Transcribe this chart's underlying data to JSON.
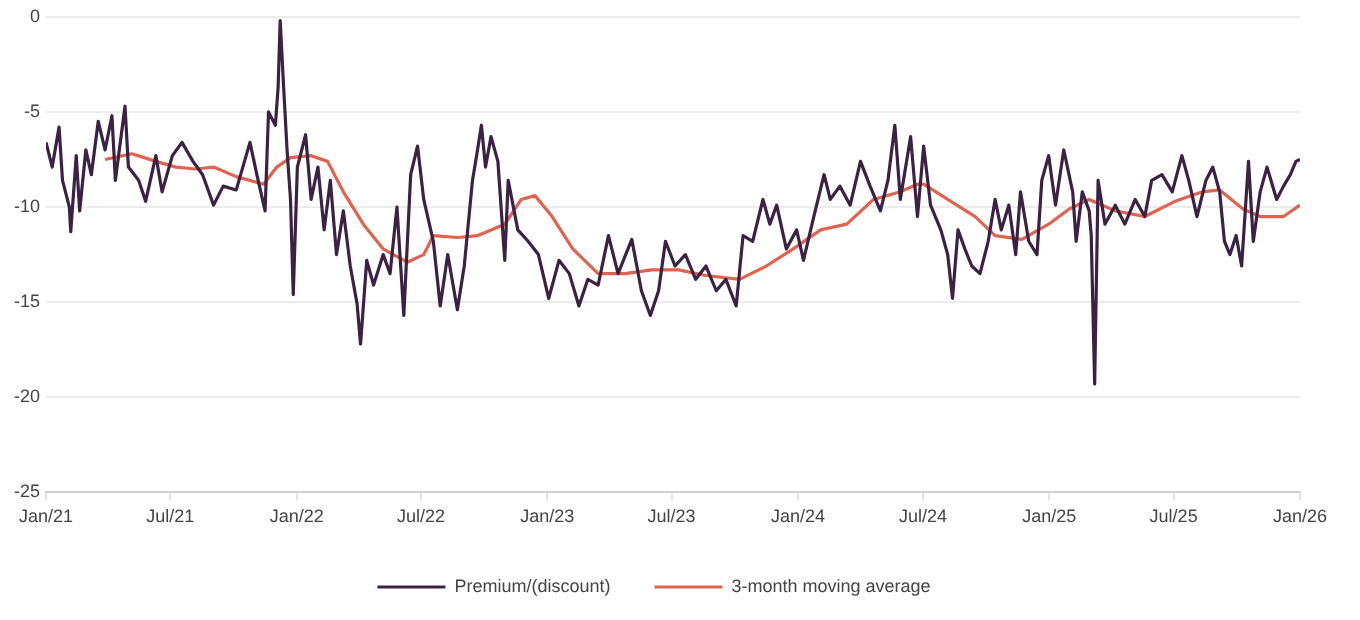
{
  "chart_data": {
    "type": "line",
    "xlim": [
      "2021-01-01",
      "2026-01-01"
    ],
    "xticks": [
      {
        "value": "2021-01-01",
        "label": "Jan/21"
      },
      {
        "value": "2021-07-01",
        "label": "Jul/21"
      },
      {
        "value": "2022-01-01",
        "label": "Jan/22"
      },
      {
        "value": "2022-07-01",
        "label": "Jul/22"
      },
      {
        "value": "2023-01-01",
        "label": "Jan/23"
      },
      {
        "value": "2023-07-01",
        "label": "Jul/23"
      },
      {
        "value": "2024-01-01",
        "label": "Jan/24"
      },
      {
        "value": "2024-07-01",
        "label": "Jul/24"
      },
      {
        "value": "2025-01-01",
        "label": "Jan/25"
      },
      {
        "value": "2025-07-01",
        "label": "Jul/25"
      },
      {
        "value": "2026-01-01",
        "label": "Jan/26"
      }
    ],
    "ylim": [
      -25,
      0
    ],
    "yticks": [
      -25,
      -20,
      -15,
      -10,
      -5,
      0
    ],
    "grid": "y",
    "legend": "bottom",
    "marker": "none",
    "line_style": "solid",
    "series": [
      {
        "name": "Premium/(discount)",
        "color": "#3b2245",
        "x": [
          "2021-01-01",
          "2021-01-10",
          "2021-01-20",
          "2021-01-25",
          "2021-02-04",
          "2021-02-06",
          "2021-02-14",
          "2021-02-19",
          "2021-02-28",
          "2021-03-08",
          "2021-03-18",
          "2021-03-28",
          "2021-04-07",
          "2021-04-12",
          "2021-04-26",
          "2021-05-01",
          "2021-05-16",
          "2021-05-26",
          "2021-06-10",
          "2021-06-19",
          "2021-07-04",
          "2021-07-18",
          "2021-08-03",
          "2021-08-17",
          "2021-09-02",
          "2021-09-16",
          "2021-10-05",
          "2021-10-25",
          "2021-11-04",
          "2021-11-16",
          "2021-11-21",
          "2021-12-01",
          "2021-12-05",
          "2021-12-08",
          "2021-12-13",
          "2021-12-18",
          "2021-12-23",
          "2021-12-27",
          "2022-01-02",
          "2022-01-14",
          "2022-01-22",
          "2022-02-01",
          "2022-02-10",
          "2022-02-19",
          "2022-02-28",
          "2022-03-10",
          "2022-03-20",
          "2022-03-30",
          "2022-04-04",
          "2022-04-13",
          "2022-04-23",
          "2022-05-07",
          "2022-05-17",
          "2022-05-27",
          "2022-06-06",
          "2022-06-16",
          "2022-06-26",
          "2022-07-05",
          "2022-07-19",
          "2022-07-29",
          "2022-08-09",
          "2022-08-23",
          "2022-09-02",
          "2022-09-14",
          "2022-09-20",
          "2022-09-27",
          "2022-10-03",
          "2022-10-11",
          "2022-10-21",
          "2022-10-31",
          "2022-11-05",
          "2022-11-19",
          "2022-12-04",
          "2022-12-19",
          "2023-01-03",
          "2023-01-18",
          "2023-02-02",
          "2023-02-16",
          "2023-03-01",
          "2023-03-16",
          "2023-03-31",
          "2023-04-14",
          "2023-05-04",
          "2023-05-18",
          "2023-05-31",
          "2023-06-12",
          "2023-06-22",
          "2023-07-06",
          "2023-07-21",
          "2023-08-05",
          "2023-08-20",
          "2023-09-04",
          "2023-09-18",
          "2023-10-03",
          "2023-10-13",
          "2023-10-27",
          "2023-11-11",
          "2023-11-21",
          "2023-12-01",
          "2023-12-15",
          "2023-12-30",
          "2024-01-09",
          "2024-01-24",
          "2024-02-08",
          "2024-02-17",
          "2024-03-02",
          "2024-03-17",
          "2024-04-01",
          "2024-04-15",
          "2024-04-30",
          "2024-05-11",
          "2024-05-21",
          "2024-05-29",
          "2024-06-13",
          "2024-06-23",
          "2024-07-02",
          "2024-07-12",
          "2024-07-27",
          "2024-08-06",
          "2024-08-13",
          "2024-08-21",
          "2024-08-31",
          "2024-09-10",
          "2024-09-22",
          "2024-10-04",
          "2024-10-14",
          "2024-10-23",
          "2024-11-03",
          "2024-11-13",
          "2024-11-20",
          "2024-12-02",
          "2024-12-14",
          "2024-12-21",
          "2024-12-31",
          "2025-01-10",
          "2025-01-22",
          "2025-02-04",
          "2025-02-09",
          "2025-02-18",
          "2025-02-28",
          "2025-03-03",
          "2025-03-08",
          "2025-03-13",
          "2025-03-23",
          "2025-04-07",
          "2025-04-21",
          "2025-05-06",
          "2025-05-20",
          "2025-05-30",
          "2025-06-14",
          "2025-06-29",
          "2025-07-13",
          "2025-07-23",
          "2025-08-04",
          "2025-08-17",
          "2025-08-27",
          "2025-09-06",
          "2025-09-13",
          "2025-09-21",
          "2025-09-30",
          "2025-10-08",
          "2025-10-18",
          "2025-10-25",
          "2025-11-04",
          "2025-11-14",
          "2025-11-28",
          "2025-12-08",
          "2025-12-18",
          "2025-12-26",
          "2026-01-01"
        ],
        "values": [
          -6.6,
          -7.9,
          -5.8,
          -8.6,
          -10,
          -11.3,
          -7.3,
          -10.2,
          -7,
          -8.3,
          -5.5,
          -7,
          -5.2,
          -8.6,
          -4.7,
          -7.9,
          -8.6,
          -9.7,
          -7.3,
          -9.2,
          -7.3,
          -6.6,
          -7.6,
          -8.3,
          -9.9,
          -8.9,
          -9.1,
          -6.6,
          -8.3,
          -10.2,
          -5,
          -5.7,
          -3.7,
          -0.2,
          -3.7,
          -7,
          -9.6,
          -14.6,
          -7.9,
          -6.2,
          -9.6,
          -7.9,
          -11.2,
          -8.6,
          -12.5,
          -10.2,
          -13.1,
          -15.1,
          -17.2,
          -12.8,
          -14.1,
          -12.5,
          -13.5,
          -10,
          -15.7,
          -8.3,
          -6.8,
          -9.6,
          -11.8,
          -15.2,
          -12.5,
          -15.4,
          -13.1,
          -8.6,
          -7.3,
          -5.7,
          -7.9,
          -6.3,
          -7.6,
          -12.8,
          -8.6,
          -11.2,
          -11.8,
          -12.5,
          -14.8,
          -12.8,
          -13.5,
          -15.2,
          -13.8,
          -14.1,
          -11.5,
          -13.5,
          -11.7,
          -14.4,
          -15.7,
          -14.4,
          -11.8,
          -13.1,
          -12.5,
          -13.8,
          -13.1,
          -14.4,
          -13.8,
          -15.2,
          -11.5,
          -11.8,
          -9.6,
          -10.9,
          -9.9,
          -12.2,
          -11.2,
          -12.8,
          -10.5,
          -8.3,
          -9.6,
          -8.9,
          -9.9,
          -7.6,
          -8.9,
          -10.2,
          -8.6,
          -5.7,
          -9.6,
          -6.3,
          -10.5,
          -6.8,
          -9.9,
          -11.2,
          -12.5,
          -14.8,
          -11.2,
          -12.2,
          -13.1,
          -13.5,
          -11.8,
          -9.6,
          -11.2,
          -9.9,
          -12.5,
          -9.2,
          -11.8,
          -12.5,
          -8.6,
          -7.3,
          -9.9,
          -7,
          -9.2,
          -11.8,
          -9.2,
          -10.2,
          -11.5,
          -19.3,
          -8.6,
          -10.9,
          -9.9,
          -10.9,
          -9.6,
          -10.5,
          -8.6,
          -8.3,
          -9.2,
          -7.3,
          -8.6,
          -10.5,
          -8.6,
          -7.9,
          -9.2,
          -11.8,
          -12.5,
          -11.5,
          -13.1,
          -7.6,
          -11.8,
          -9.2,
          -7.9,
          -9.6,
          -8.9,
          -8.3,
          -7.6,
          -7.5
        ]
      },
      {
        "name": "3-month moving average",
        "color": "#e0634f",
        "x": [
          "2021-03-28",
          "2021-05-06",
          "2021-06-10",
          "2021-07-09",
          "2021-08-07",
          "2021-09-02",
          "2021-10-05",
          "2021-11-14",
          "2021-12-03",
          "2021-12-23",
          "2022-01-22",
          "2022-02-15",
          "2022-03-10",
          "2022-04-08",
          "2022-05-07",
          "2022-06-11",
          "2022-07-05",
          "2022-07-19",
          "2022-08-23",
          "2022-09-22",
          "2022-10-31",
          "2022-11-24",
          "2022-12-14",
          "2023-01-08",
          "2023-02-07",
          "2023-03-16",
          "2023-04-24",
          "2023-06-02",
          "2023-07-11",
          "2023-08-20",
          "2023-10-08",
          "2023-11-16",
          "2023-12-25",
          "2024-02-03",
          "2024-03-12",
          "2024-04-20",
          "2024-05-29",
          "2024-06-23",
          "2024-07-02",
          "2024-08-06",
          "2024-09-15",
          "2024-10-14",
          "2024-11-22",
          "2024-12-31",
          "2025-01-30",
          "2025-02-28",
          "2025-04-07",
          "2025-05-20",
          "2025-07-03",
          "2025-08-12",
          "2025-09-06",
          "2025-10-10",
          "2025-11-04",
          "2025-12-08",
          "2026-01-01"
        ],
        "values": [
          -7.5,
          -7.2,
          -7.6,
          -7.9,
          -8,
          -7.9,
          -8.4,
          -8.8,
          -7.9,
          -7.4,
          -7.3,
          -7.6,
          -9.2,
          -10.9,
          -12.2,
          -12.9,
          -12.5,
          -11.5,
          -11.6,
          -11.5,
          -10.9,
          -9.6,
          -9.4,
          -10.5,
          -12.2,
          -13.5,
          -13.5,
          -13.3,
          -13.3,
          -13.6,
          -13.8,
          -13.1,
          -12.2,
          -11.2,
          -10.9,
          -9.6,
          -9.2,
          -8.8,
          -8.8,
          -9.6,
          -10.5,
          -11.5,
          -11.7,
          -10.9,
          -10.1,
          -9.6,
          -10.2,
          -10.5,
          -9.7,
          -9.2,
          -9.1,
          -10.1,
          -10.5,
          -10.5,
          -9.9
        ]
      }
    ]
  }
}
